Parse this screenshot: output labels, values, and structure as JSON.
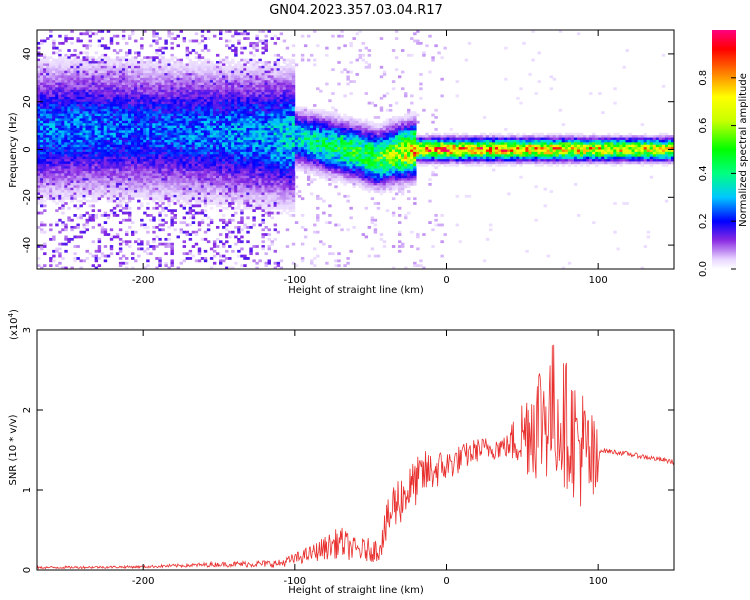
{
  "title": "GN04.2023.357.03.04.R17",
  "chart_data": [
    {
      "type": "heatmap",
      "xlabel": "Height of straight line (km)",
      "ylabel": "Frequency (Hz)",
      "xlim": [
        -270,
        150
      ],
      "ylim": [
        -50,
        50
      ],
      "xticks": [
        -200,
        -100,
        0,
        100
      ],
      "yticks": [
        -40,
        -20,
        0,
        20,
        40
      ],
      "grid": false,
      "colorbar": {
        "label": "Normalized spectral amplitude",
        "range": [
          0.0,
          1.0
        ],
        "ticks": [
          0.0,
          0.2,
          0.4,
          0.6,
          0.8
        ],
        "tick_labels": [
          "0.0",
          "0.2",
          "0.4",
          "0.6",
          "0.8"
        ]
      },
      "ridge": {
        "x": [
          -270,
          -240,
          -200,
          -160,
          -120,
          -100,
          -80,
          -60,
          -45,
          -35,
          -20,
          0,
          50,
          100,
          150
        ],
        "freq_hz": [
          8,
          9,
          8,
          7,
          6,
          5,
          2,
          -1,
          -4,
          -2,
          0,
          0,
          0,
          0,
          0
        ],
        "amplitude": [
          0.3,
          0.3,
          0.28,
          0.3,
          0.33,
          0.4,
          0.5,
          0.55,
          0.6,
          0.7,
          0.9,
          0.95,
          0.9,
          0.85,
          0.8
        ]
      }
    },
    {
      "type": "line",
      "xlabel": "Height of straight line (km)",
      "ylabel": "SNR (10 * v/v)",
      "multiplier_label": "(x10",
      "multiplier_exp": "4",
      "multiplier_close": ")",
      "xlim": [
        -270,
        150
      ],
      "ylim": [
        0,
        30000
      ],
      "xticks": [
        -200,
        -100,
        0,
        100
      ],
      "yticks": [
        0,
        10000,
        20000,
        30000
      ],
      "ytick_labels": [
        "0",
        "1",
        "2",
        "3"
      ],
      "color": "#e8302e",
      "grid": false,
      "envelope": {
        "x": [
          -270,
          -200,
          -150,
          -110,
          -90,
          -70,
          -60,
          -45,
          -35,
          -25,
          -15,
          0,
          20,
          40,
          50,
          60,
          70,
          80,
          90,
          100,
          101,
          120,
          150
        ],
        "y": [
          300,
          400,
          700,
          800,
          2000,
          3500,
          2500,
          2500,
          8000,
          10000,
          12000,
          13000,
          15000,
          15500,
          17000,
          19000,
          20000,
          18000,
          15000,
          12000,
          15000,
          14500,
          13500
        ],
        "spread": [
          150,
          150,
          300,
          500,
          1000,
          2000,
          1500,
          1500,
          3500,
          3000,
          3000,
          2000,
          1500,
          1500,
          5000,
          8000,
          9000,
          8000,
          8000,
          6000,
          300,
          300,
          300
        ]
      }
    }
  ]
}
